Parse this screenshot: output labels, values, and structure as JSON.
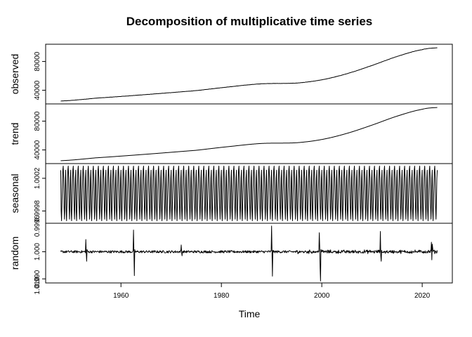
{
  "chart_data": {
    "type": "line",
    "title": "Decomposition of multiplicative time series",
    "xlabel": "Time",
    "x_range": [
      1948,
      2023
    ],
    "xlim": [
      1945,
      2026
    ],
    "x_ticks": [
      1960,
      1980,
      2000,
      2020
    ],
    "panels": [
      {
        "name": "observed",
        "ylabel": "observed",
        "ylim": [
          21000,
          104000
        ],
        "ticks": [
          40000,
          80000
        ],
        "tick_labels": [
          "40000",
          "80000"
        ],
        "kind": "smooth",
        "knots_x": [
          1948,
          1955,
          1965,
          1975,
          1982,
          1988,
          1995,
          2000,
          2005,
          2010,
          2015,
          2020,
          2023
        ],
        "knots_y": [
          25000,
          29000,
          34000,
          39500,
          45000,
          49000,
          50000,
          54500,
          63000,
          74500,
          87000,
          96500,
          99000
        ],
        "noise": 300
      },
      {
        "name": "trend",
        "ylabel": "trend",
        "ylim": [
          21000,
          104000
        ],
        "ticks": [
          40000,
          80000
        ],
        "tick_labels": [
          "40000",
          "80000"
        ],
        "kind": "smooth",
        "knots_x": [
          1948,
          1955,
          1965,
          1975,
          1982,
          1988,
          1995,
          2000,
          2005,
          2010,
          2015,
          2020,
          2023
        ],
        "knots_y": [
          25000,
          29000,
          34000,
          39500,
          45000,
          49000,
          50000,
          54500,
          63000,
          74500,
          87000,
          96500,
          99000
        ],
        "noise": 0
      },
      {
        "name": "seasonal",
        "ylabel": "seasonal",
        "ylim": [
          0.99965,
          1.00038
        ],
        "ticks": [
          0.9998,
          1.0002
        ],
        "tick_labels": [
          "0.9998",
          "1.0002"
        ],
        "extra_tick_labels": [
          "0.9996"
        ],
        "kind": "seasonal",
        "pattern": [
          1.0003,
          0.9998,
          0.99968,
          0.9999,
          1.0001,
          1.0003,
          1.00035,
          1.0002,
          0.99985,
          0.9997,
          0.9999,
          1.0002
        ]
      },
      {
        "name": "random",
        "ylabel": "random",
        "ylim": [
          0.9885,
          1.0105
        ],
        "ticks": [
          0.99,
          1.0
        ],
        "tick_labels": [
          "0.990",
          "1.000"
        ],
        "extra_tick_labels": [
          "1.010"
        ],
        "kind": "random",
        "baseline": 1.0,
        "noise": 0.00045,
        "spikes": [
          {
            "x": 1953.0,
            "values": [
              1.0045,
              0.9998,
              0.9965,
              1.0008
            ]
          },
          {
            "x": 1962.5,
            "values": [
              1.008,
              0.9995,
              0.9912,
              1.0008
            ]
          },
          {
            "x": 1972.0,
            "values": [
              1.0025,
              0.9997,
              0.9985
            ]
          },
          {
            "x": 1990.0,
            "values": [
              1.0095,
              1.0,
              0.991,
              1.0005
            ]
          },
          {
            "x": 1999.5,
            "values": [
              1.007,
              1.002,
              0.994,
              0.9892,
              1.0008
            ]
          },
          {
            "x": 2011.7,
            "values": [
              1.0075,
              0.9985,
              0.9965,
              1.0005
            ]
          },
          {
            "x": 2021.8,
            "values": [
              1.0035,
              0.997,
              1.0028,
              1.0015
            ]
          }
        ]
      }
    ]
  }
}
